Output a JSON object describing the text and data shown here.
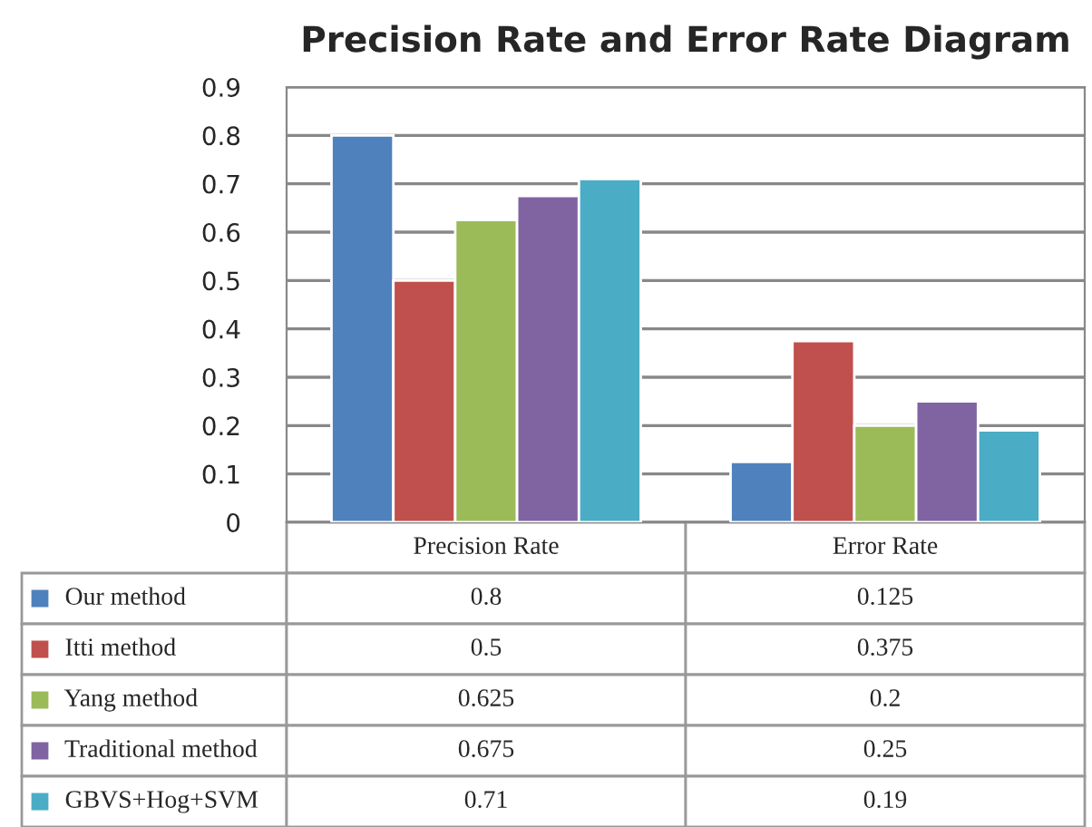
{
  "chart_data": {
    "type": "bar",
    "title": "Precision Rate and Error Rate Diagram",
    "categories": [
      "Precision Rate",
      "Error Rate"
    ],
    "series": [
      {
        "name": "Our method",
        "color": "#4f81bd",
        "values": [
          0.8,
          0.125
        ]
      },
      {
        "name": "Itti method",
        "color": "#c0504d",
        "values": [
          0.5,
          0.375
        ]
      },
      {
        "name": "Yang method",
        "color": "#9bbb59",
        "values": [
          0.625,
          0.2
        ]
      },
      {
        "name": "Traditional method",
        "color": "#8064a2",
        "values": [
          0.675,
          0.25
        ]
      },
      {
        "name": "GBVS+Hog+SVM",
        "color": "#4bacc6",
        "values": [
          0.71,
          0.19
        ]
      }
    ],
    "ylim": [
      0,
      0.9
    ],
    "yticks": [
      0,
      0.1,
      0.2,
      0.3,
      0.4,
      0.5,
      0.6,
      0.7,
      0.8,
      0.9
    ],
    "grid": "y",
    "legend": "bottom",
    "data_labels": true
  }
}
